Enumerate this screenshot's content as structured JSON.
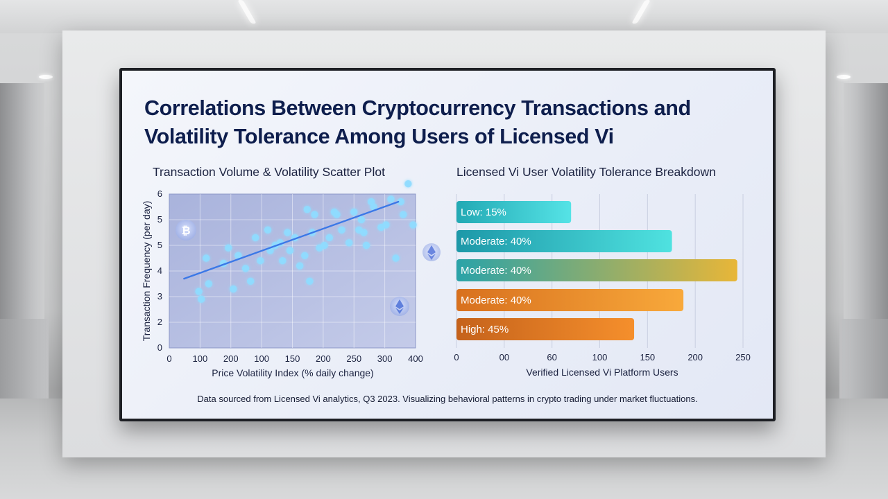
{
  "dashboard": {
    "title": "Correlations Between Cryptocurrency Transactions and Volatility Tolerance Among Users of Licensed Vi",
    "footnote": "Data sourced from Licensed Vi analytics, Q3 2023. Visualizing behavioral patterns in crypto trading under market fluctuations."
  },
  "icons": {
    "coin_bitcoin": "bitcoin-coin-icon",
    "coin_ethereum": "ethereum-diamond-icon"
  },
  "colors": {
    "scatter_point": "#8fdcff",
    "trend_line": "#3b78e7",
    "low": [
      "#22a9b4",
      "#55e3e6"
    ],
    "moderate_teal": [
      "#1d98a8",
      "#4fe2e0"
    ],
    "moderate_mixed": [
      "#2aa3a8",
      "#e8b638"
    ],
    "moderate_orange": [
      "#d8701e",
      "#f8a93b"
    ],
    "high": [
      "#c5621b",
      "#f58f2c"
    ]
  },
  "chart_data": [
    {
      "type": "scatter",
      "title": "Transaction Volume & Volatility Scatter Plot",
      "xlabel": "Price Volatility Index (% daily change)",
      "ylabel": "Transaction Frequency (per day)",
      "xticks": [
        "0",
        "100",
        "200",
        "100",
        "150",
        "200",
        "250",
        "300",
        "400"
      ],
      "yticks": [
        "0",
        "2",
        "3",
        "4",
        "5",
        "5",
        "6"
      ],
      "grid": true,
      "points": [
        [
          0.12,
          2.2
        ],
        [
          0.13,
          1.9
        ],
        [
          0.15,
          3.5
        ],
        [
          0.16,
          2.5
        ],
        [
          0.22,
          3.3
        ],
        [
          0.24,
          3.9
        ],
        [
          0.26,
          2.3
        ],
        [
          0.28,
          3.6
        ],
        [
          0.31,
          3.1
        ],
        [
          0.33,
          2.6
        ],
        [
          0.35,
          4.3
        ],
        [
          0.37,
          3.4
        ],
        [
          0.4,
          4.6
        ],
        [
          0.41,
          3.8
        ],
        [
          0.43,
          4.0
        ],
        [
          0.45,
          4.1
        ],
        [
          0.46,
          3.4
        ],
        [
          0.48,
          4.5
        ],
        [
          0.49,
          3.8
        ],
        [
          0.51,
          4.3
        ],
        [
          0.53,
          3.2
        ],
        [
          0.55,
          3.6
        ],
        [
          0.56,
          5.4
        ],
        [
          0.57,
          2.6
        ],
        [
          0.58,
          4.5
        ],
        [
          0.59,
          5.2
        ],
        [
          0.61,
          3.9
        ],
        [
          0.63,
          4.0
        ],
        [
          0.65,
          4.3
        ],
        [
          0.67,
          5.3
        ],
        [
          0.68,
          5.2
        ],
        [
          0.7,
          4.6
        ],
        [
          0.73,
          4.1
        ],
        [
          0.75,
          5.3
        ],
        [
          0.77,
          4.6
        ],
        [
          0.78,
          5.0
        ],
        [
          0.79,
          4.5
        ],
        [
          0.8,
          4.0
        ],
        [
          0.82,
          5.7
        ],
        [
          0.83,
          5.5
        ],
        [
          0.86,
          4.7
        ],
        [
          0.88,
          4.8
        ],
        [
          0.9,
          5.8
        ],
        [
          0.92,
          3.5
        ],
        [
          0.94,
          5.7
        ],
        [
          0.95,
          5.2
        ],
        [
          0.97,
          6.4
        ],
        [
          0.99,
          4.8
        ]
      ],
      "trend": [
        [
          0.06,
          2.7
        ],
        [
          0.93,
          5.7
        ]
      ]
    },
    {
      "type": "bar",
      "orientation": "horizontal",
      "title": "Licensed Vi User Volatility Tolerance Breakdown",
      "xlabel": "Verified Licensed Vi Platform Users",
      "xticks": [
        "0",
        "00",
        "60",
        "100",
        "150",
        "200",
        "250"
      ],
      "xlim": [
        0,
        250
      ],
      "bars": [
        {
          "label": "Low: 15%",
          "value": 100
        },
        {
          "label": "Moderate: 40%",
          "value": 188
        },
        {
          "label": "Moderate: 40%",
          "value": 245
        },
        {
          "label": "Moderate: 40%",
          "value": 198
        },
        {
          "label": "High: 45%",
          "value": 155
        }
      ]
    }
  ]
}
